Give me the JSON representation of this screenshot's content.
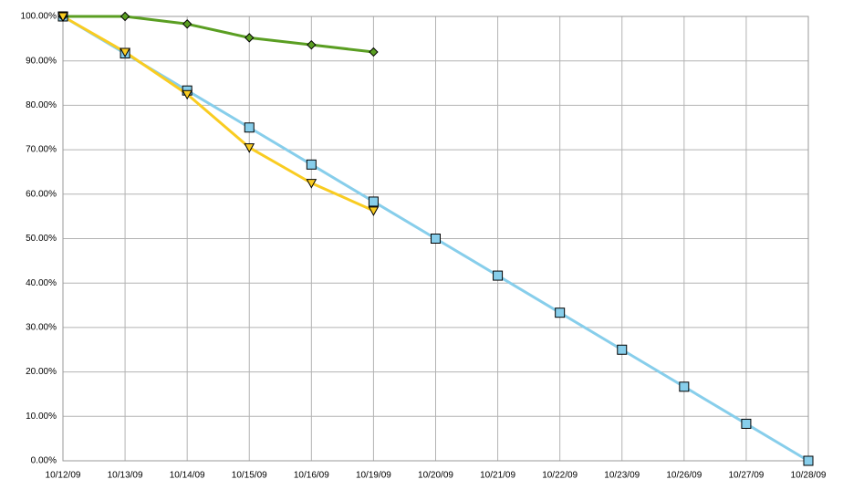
{
  "chart_data": {
    "type": "line",
    "categories": [
      "10/12/09",
      "10/13/09",
      "10/14/09",
      "10/15/09",
      "10/16/09",
      "10/19/09",
      "10/20/09",
      "10/21/09",
      "10/22/09",
      "10/23/09",
      "10/26/09",
      "10/27/09",
      "10/28/09"
    ],
    "series": [
      {
        "color": "#87ceeb",
        "marker": "square",
        "values": [
          100,
          91.67,
          83.33,
          75,
          66.67,
          58.33,
          50,
          41.67,
          33.33,
          25,
          16.67,
          8.33,
          0
        ]
      },
      {
        "color": "#5a9e22",
        "marker": "diamond",
        "values": [
          100,
          100,
          98.3,
          95.2,
          93.6,
          92,
          null,
          null,
          null,
          null,
          null,
          null,
          null
        ]
      },
      {
        "color": "#f9cc21",
        "marker": "triangle-down",
        "values": [
          100,
          92,
          82.5,
          70.5,
          62.5,
          56.3,
          null,
          null,
          null,
          null,
          null,
          null,
          null
        ]
      }
    ],
    "ylim": [
      0,
      100
    ],
    "yticks": [
      {
        "value": 0,
        "label": "0.00%"
      },
      {
        "value": 10,
        "label": "10.00%"
      },
      {
        "value": 20,
        "label": "20.00%"
      },
      {
        "value": 30,
        "label": "30.00%"
      },
      {
        "value": 40,
        "label": "40.00%"
      },
      {
        "value": 50,
        "label": "50.00%"
      },
      {
        "value": 60,
        "label": "60.00%"
      },
      {
        "value": 70,
        "label": "70.00%"
      },
      {
        "value": 80,
        "label": "80.00%"
      },
      {
        "value": 90,
        "label": "90.00%"
      },
      {
        "value": 100,
        "label": "100.00%"
      }
    ],
    "grid": true
  }
}
